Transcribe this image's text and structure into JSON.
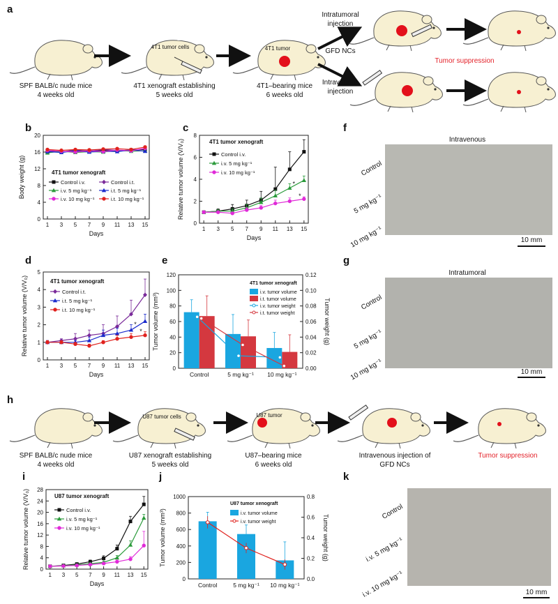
{
  "panel_letters": [
    "a",
    "b",
    "c",
    "d",
    "e",
    "f",
    "g",
    "h",
    "i",
    "j",
    "k"
  ],
  "schema_a": {
    "step1": [
      "SPF BALB/c nude mice",
      "4 weeks old"
    ],
    "step2_tag": "4T1 tumor cells",
    "step2": [
      "4T1 xenograft establishing",
      "5 weeks old"
    ],
    "step3_tag": "4T1 tumor",
    "step3": [
      "4T1–bearing mice",
      "6 weeks old"
    ],
    "route_it": [
      "Intratumoral",
      "injection"
    ],
    "route_iv": [
      "Intravenous",
      "injection"
    ],
    "agent": "GFD NCs",
    "outcome": "Tumor suppression"
  },
  "schema_h": {
    "step1": [
      "SPF BALB/c nude mice",
      "4 weeks old"
    ],
    "step2_tag": "U87 tumor cells",
    "step2": [
      "U87 xenograft establishing",
      "5 weeks old"
    ],
    "step3_tag": "U87 tumor",
    "step3": [
      "U87–bearing mice",
      "6 weeks old"
    ],
    "step4": [
      "Intravenous injection of",
      "GFD NCs"
    ],
    "outcome": "Tumor suppression"
  },
  "photo_f": {
    "title": "Intravenous",
    "rows": [
      "Control",
      "5 mg kg⁻¹",
      "10 mg kg⁻¹"
    ],
    "scale": "10 mm"
  },
  "photo_g": {
    "title": "Intratumoral",
    "rows": [
      "Control",
      "5 mg kg⁻¹",
      "10 mg kg⁻¹"
    ],
    "scale": "10 mm"
  },
  "photo_k": {
    "rows": [
      "Control",
      "i.v. 5 mg kg⁻¹",
      "i.v. 10 mg kg⁻¹"
    ],
    "scale": "10 mm"
  },
  "colors": {
    "black": "#111111",
    "purple": "#7a2a9a",
    "green": "#2a9a3a",
    "blue": "#1a2acc",
    "magenta": "#e02ad8",
    "red": "#e0221e",
    "cyan": "#1aa6e0",
    "crimson": "#d4383f"
  },
  "chart_data": [
    {
      "panel": "b",
      "type": "line",
      "xlabel": "Days",
      "ylabel": "Body weight (g)",
      "annotation": "4T1 tumor xenograft",
      "x": [
        1,
        3,
        5,
        7,
        9,
        11,
        13,
        15
      ],
      "xticks": [
        "1",
        "3",
        "5",
        "7",
        "9",
        "11",
        "13",
        "15"
      ],
      "ylim": [
        0,
        20
      ],
      "yticks": [
        "0",
        "4",
        "8",
        "12",
        "16",
        "20"
      ],
      "series": [
        {
          "name": "Control i.v.",
          "color": "black",
          "values": [
            16.0,
            16.1,
            16.2,
            16.3,
            16.4,
            16.3,
            16.5,
            16.6
          ]
        },
        {
          "name": "Control i.t.",
          "color": "purple",
          "values": [
            16.3,
            16.0,
            16.5,
            16.2,
            16.6,
            16.4,
            16.3,
            16.8
          ]
        },
        {
          "name": "i.v. 5 mg kg⁻¹",
          "color": "green",
          "values": [
            15.8,
            16.2,
            15.9,
            16.1,
            16.0,
            16.4,
            16.2,
            16.3
          ]
        },
        {
          "name": "i.t. 5 mg kg⁻¹",
          "color": "blue",
          "values": [
            16.1,
            15.9,
            16.3,
            16.0,
            16.2,
            16.1,
            16.5,
            16.2
          ]
        },
        {
          "name": "i.v. 10 mg kg⁻¹",
          "color": "magenta",
          "values": [
            16.4,
            16.2,
            16.0,
            16.3,
            16.1,
            16.5,
            16.3,
            16.9
          ]
        },
        {
          "name": "i.t. 10 mg kg⁻¹",
          "color": "red",
          "values": [
            16.6,
            16.4,
            16.6,
            16.5,
            16.7,
            16.8,
            16.6,
            17.2
          ]
        }
      ]
    },
    {
      "panel": "c",
      "type": "line",
      "xlabel": "Days",
      "ylabel": "Relative tumor volume (V/V₀)",
      "annotation": "4T1 tumor xenograft",
      "x": [
        1,
        3,
        5,
        7,
        9,
        11,
        13,
        15
      ],
      "xticks": [
        "1",
        "3",
        "5",
        "7",
        "9",
        "11",
        "13",
        "15"
      ],
      "ylim": [
        0,
        8
      ],
      "yticks": [
        "0",
        "2",
        "4",
        "6",
        "8"
      ],
      "series": [
        {
          "name": "Control i.v.",
          "color": "black",
          "values": [
            1.0,
            1.1,
            1.3,
            1.6,
            2.1,
            3.1,
            4.9,
            6.5
          ],
          "err": [
            0.1,
            0.2,
            0.4,
            0.5,
            0.8,
            2.0,
            1.6,
            1.1
          ]
        },
        {
          "name": "i.v. 5 mg kg⁻¹",
          "color": "green",
          "values": [
            1.0,
            1.1,
            1.1,
            1.4,
            1.9,
            2.5,
            3.2,
            3.9
          ],
          "err": [
            0.1,
            0.1,
            0.2,
            0.3,
            0.4,
            0.5,
            0.4,
            0.4
          ]
        },
        {
          "name": "i.v. 10 mg kg⁻¹",
          "color": "magenta",
          "values": [
            1.0,
            1.0,
            0.9,
            1.2,
            1.4,
            1.8,
            2.0,
            2.2
          ],
          "err": [
            0.1,
            0.1,
            0.1,
            0.2,
            0.2,
            0.3,
            0.3,
            0.2
          ]
        }
      ],
      "markers": [
        "*",
        "*"
      ]
    },
    {
      "panel": "d",
      "type": "line",
      "xlabel": "Days",
      "ylabel": "Relative tumor volume (V/V₀)",
      "annotation": "4T1 tumor xenograft",
      "x": [
        1,
        3,
        5,
        7,
        9,
        11,
        13,
        15
      ],
      "xticks": [
        "1",
        "3",
        "5",
        "7",
        "9",
        "11",
        "13",
        "15"
      ],
      "ylim": [
        0,
        5
      ],
      "yticks": [
        "0",
        "1",
        "2",
        "3",
        "4",
        "5"
      ],
      "series": [
        {
          "name": "Control i.t.",
          "color": "purple",
          "values": [
            1.0,
            1.1,
            1.2,
            1.4,
            1.5,
            1.9,
            2.6,
            3.7
          ],
          "err": [
            0.1,
            0.1,
            0.3,
            0.3,
            0.5,
            0.6,
            0.8,
            0.9
          ]
        },
        {
          "name": "i.t. 5 mg kg⁻¹",
          "color": "blue",
          "values": [
            1.0,
            1.0,
            1.0,
            1.1,
            1.4,
            1.5,
            1.7,
            2.2
          ],
          "err": [
            0.1,
            0.1,
            0.1,
            0.2,
            0.3,
            0.3,
            0.3,
            0.4
          ]
        },
        {
          "name": "i.t. 10 mg kg⁻¹",
          "color": "red",
          "values": [
            1.0,
            1.0,
            0.9,
            0.8,
            1.0,
            1.2,
            1.3,
            1.4
          ],
          "err": [
            0.1,
            0.1,
            0.1,
            0.1,
            0.1,
            0.2,
            0.2,
            0.2
          ]
        }
      ],
      "markers": [
        "*",
        "*"
      ]
    },
    {
      "panel": "e",
      "type": "bar",
      "xlabel": "",
      "ylabel": "Tumor volume (mm³)",
      "y2label": "Tumor weight (g)",
      "annotation": "4T1 tumor xenograft",
      "categories": [
        "Control",
        "5 mg kg⁻¹",
        "10 mg kg⁻¹"
      ],
      "ylim": [
        0,
        120
      ],
      "yticks": [
        "0",
        "20",
        "40",
        "60",
        "80",
        "100",
        "120"
      ],
      "y2lim": [
        0,
        0.12
      ],
      "y2ticks": [
        "0.00",
        "0.02",
        "0.04",
        "0.06",
        "0.08",
        "0.10",
        "0.12"
      ],
      "series": [
        {
          "name": "i.v. tumor volume",
          "color": "cyan",
          "kind": "bar",
          "axis": "left",
          "values": [
            72,
            44,
            26
          ],
          "err": [
            16,
            25,
            20
          ]
        },
        {
          "name": "i.t. tumor volume",
          "color": "crimson",
          "kind": "bar",
          "axis": "left",
          "values": [
            67,
            41,
            21
          ],
          "err": [
            26,
            21,
            22
          ]
        },
        {
          "name": "i.v. tumor weight",
          "color": "cyan",
          "kind": "line",
          "axis": "right",
          "values": [
            0.066,
            0.016,
            0.014
          ]
        },
        {
          "name": "i.t. tumor weight",
          "color": "crimson",
          "kind": "line",
          "axis": "right",
          "values": [
            0.064,
            0.03,
            0.003
          ]
        }
      ]
    },
    {
      "panel": "i",
      "type": "line",
      "xlabel": "Days",
      "ylabel": "Relative tumor volume (V/V₀)",
      "annotation": "U87 tumor xenograft",
      "x": [
        1,
        3,
        5,
        7,
        9,
        11,
        13,
        15
      ],
      "xticks": [
        "1",
        "3",
        "5",
        "7",
        "9",
        "11",
        "13",
        "15"
      ],
      "ylim": [
        0,
        28
      ],
      "yticks": [
        "0",
        "4",
        "8",
        "12",
        "16",
        "20",
        "24",
        "28"
      ],
      "series": [
        {
          "name": "Control i.v.",
          "color": "black",
          "values": [
            1.0,
            1.3,
            1.8,
            2.6,
            3.8,
            7.2,
            16.8,
            22.8
          ],
          "err": [
            0.2,
            0.3,
            0.4,
            0.6,
            0.9,
            1.3,
            1.8,
            2.8
          ]
        },
        {
          "name": "i.v. 5 mg kg⁻¹",
          "color": "green",
          "values": [
            1.0,
            1.2,
            1.5,
            1.9,
            2.4,
            4.0,
            8.5,
            18.0
          ],
          "err": [
            0.2,
            0.2,
            0.3,
            0.4,
            0.5,
            0.8,
            1.5,
            1.3
          ]
        },
        {
          "name": "i.v. 10 mg kg⁻¹",
          "color": "magenta",
          "values": [
            1.0,
            1.1,
            1.3,
            1.6,
            2.0,
            2.6,
            3.5,
            8.3
          ],
          "err": [
            0.1,
            0.2,
            0.2,
            0.3,
            0.4,
            0.6,
            0.9,
            5.0
          ]
        }
      ]
    },
    {
      "panel": "j",
      "type": "bar",
      "xlabel": "",
      "ylabel": "Tumor volume (mm³)",
      "y2label": "Tumor weight (g)",
      "annotation": "U87 tumor xenograft",
      "categories": [
        "Control",
        "5 mg kg⁻¹",
        "10 mg kg⁻¹"
      ],
      "ylim": [
        0,
        1000
      ],
      "yticks": [
        "0",
        "200",
        "400",
        "600",
        "800",
        "1000"
      ],
      "y2lim": [
        0,
        0.8
      ],
      "y2ticks": [
        "0.0",
        "0.2",
        "0.4",
        "0.6",
        "0.8"
      ],
      "series": [
        {
          "name": "i.v. tumor volume",
          "color": "cyan",
          "kind": "bar",
          "axis": "left",
          "values": [
            700,
            545,
            225
          ],
          "err": [
            110,
            110,
            225
          ]
        },
        {
          "name": "i.v. tumor weight",
          "color": "red",
          "kind": "line",
          "axis": "right",
          "values": [
            0.55,
            0.3,
            0.14
          ],
          "err": [
            0.06,
            0.05,
            0.05
          ]
        }
      ]
    }
  ]
}
